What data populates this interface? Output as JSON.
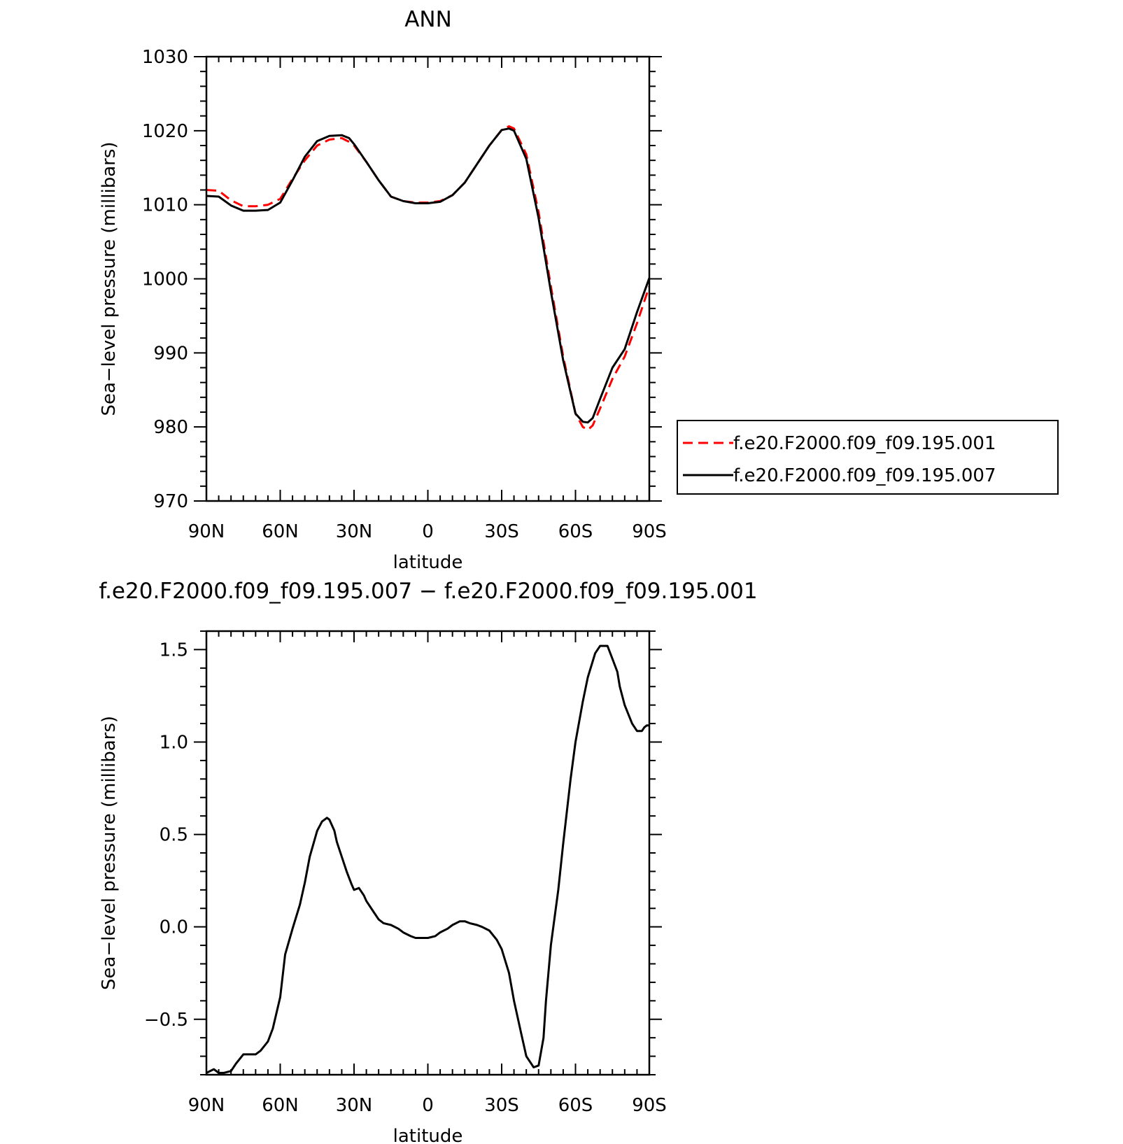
{
  "chart_data": [
    {
      "type": "line",
      "title": "ANN",
      "xlabel": "latitude",
      "ylabel": "Sea−level pressure (millibars)",
      "xlim": [
        90,
        -90
      ],
      "ylim": [
        970,
        1030
      ],
      "x_tick_values": [
        90,
        60,
        30,
        0,
        -30,
        -60,
        -90
      ],
      "x_tick_labels": [
        "90N",
        "60N",
        "30N",
        "0",
        "30S",
        "60S",
        "90S"
      ],
      "y_tick_values": [
        970,
        980,
        990,
        1000,
        1010,
        1020,
        1030
      ],
      "y_tick_labels": [
        "970",
        "980",
        "990",
        "1000",
        "1010",
        "1020",
        "1030"
      ],
      "legend_position": "right",
      "x": [
        90,
        85,
        80,
        75,
        70,
        65,
        60,
        55,
        50,
        45,
        40,
        35,
        32,
        30,
        25,
        20,
        15,
        10,
        5,
        0,
        -5,
        -10,
        -15,
        -20,
        -25,
        -30,
        -33,
        -35,
        -40,
        -45,
        -50,
        -55,
        -60,
        -63,
        -65,
        -67,
        -70,
        -75,
        -80,
        -85,
        -90
      ],
      "series": [
        {
          "name": "f.e20.F2000.f09_f09.195.001",
          "color": "#ff0000",
          "dash": "dashed",
          "values": [
            1012.0,
            1011.9,
            1010.6,
            1009.8,
            1009.8,
            1010.0,
            1010.8,
            1013.5,
            1016.0,
            1018.0,
            1018.8,
            1019.0,
            1018.5,
            1018.0,
            1015.8,
            1013.3,
            1011.1,
            1010.5,
            1010.3,
            1010.3,
            1010.5,
            1011.3,
            1013.0,
            1015.5,
            1018.0,
            1020.1,
            1020.6,
            1020.3,
            1016.8,
            1009.0,
            999.0,
            989.5,
            981.8,
            980.0,
            979.6,
            980.2,
            982.5,
            986.5,
            989.5,
            994.0,
            999.0
          ]
        },
        {
          "name": "f.e20.F2000.f09_f09.195.007",
          "color": "#000000",
          "dash": "solid",
          "values": [
            1011.2,
            1011.1,
            1009.9,
            1009.2,
            1009.2,
            1009.3,
            1010.3,
            1013.3,
            1016.5,
            1018.6,
            1019.3,
            1019.4,
            1019.0,
            1018.2,
            1015.8,
            1013.3,
            1011.1,
            1010.5,
            1010.2,
            1010.2,
            1010.4,
            1011.3,
            1013.0,
            1015.5,
            1018.0,
            1020.1,
            1020.3,
            1020.0,
            1016.2,
            1008.2,
            998.3,
            989.0,
            981.8,
            980.7,
            980.6,
            981.2,
            983.8,
            988.0,
            990.5,
            995.5,
            1000.1
          ]
        }
      ]
    },
    {
      "type": "line",
      "title": "f.e20.F2000.f09_f09.195.007 − f.e20.F2000.f09_f09.195.001",
      "xlabel": "latitude",
      "ylabel": "Sea−level pressure (millibars)",
      "xlim": [
        90,
        -90
      ],
      "ylim": [
        -0.8,
        1.6
      ],
      "x_tick_values": [
        90,
        60,
        30,
        0,
        -30,
        -60,
        -90
      ],
      "x_tick_labels": [
        "90N",
        "60N",
        "30N",
        "0",
        "30S",
        "60S",
        "90S"
      ],
      "y_tick_values": [
        -0.5,
        0.0,
        0.5,
        1.0,
        1.5
      ],
      "y_tick_labels": [
        "−0.5",
        "0.0",
        "0.5",
        "1.0",
        "1.5"
      ],
      "x": [
        90,
        87,
        85,
        83,
        80,
        78,
        75,
        72,
        70,
        68,
        65,
        63,
        60,
        58,
        55,
        52,
        50,
        48,
        45,
        43,
        41,
        40,
        38,
        37,
        35,
        33,
        31,
        30,
        28,
        26,
        25,
        22,
        20,
        18,
        15,
        12,
        10,
        7,
        5,
        3,
        0,
        -3,
        -5,
        -8,
        -10,
        -13,
        -15,
        -17,
        -20,
        -22,
        -25,
        -28,
        -30,
        -33,
        -35,
        -38,
        -40,
        -43,
        -45,
        -47,
        -48,
        -50,
        -53,
        -55,
        -58,
        -60,
        -63,
        -65,
        -68,
        -70,
        -73,
        -75,
        -77,
        -78,
        -80,
        -83,
        -85,
        -87,
        -88,
        -89,
        -90
      ],
      "series": [
        {
          "color": "#000000",
          "dash": "solid",
          "values": [
            -0.79,
            -0.77,
            -0.79,
            -0.79,
            -0.78,
            -0.74,
            -0.69,
            -0.69,
            -0.69,
            -0.67,
            -0.62,
            -0.55,
            -0.38,
            -0.15,
            -0.01,
            0.12,
            0.24,
            0.38,
            0.52,
            0.57,
            0.59,
            0.58,
            0.52,
            0.46,
            0.38,
            0.3,
            0.23,
            0.2,
            0.21,
            0.17,
            0.14,
            0.08,
            0.04,
            0.02,
            0.01,
            -0.01,
            -0.03,
            -0.05,
            -0.06,
            -0.06,
            -0.06,
            -0.05,
            -0.03,
            -0.01,
            0.01,
            0.03,
            0.03,
            0.02,
            0.01,
            0.0,
            -0.02,
            -0.07,
            -0.12,
            -0.25,
            -0.4,
            -0.58,
            -0.7,
            -0.76,
            -0.75,
            -0.6,
            -0.4,
            -0.1,
            0.2,
            0.45,
            0.8,
            1.0,
            1.22,
            1.35,
            1.48,
            1.52,
            1.52,
            1.45,
            1.38,
            1.3,
            1.2,
            1.1,
            1.06,
            1.06,
            1.08,
            1.09,
            1.09
          ]
        }
      ]
    }
  ]
}
